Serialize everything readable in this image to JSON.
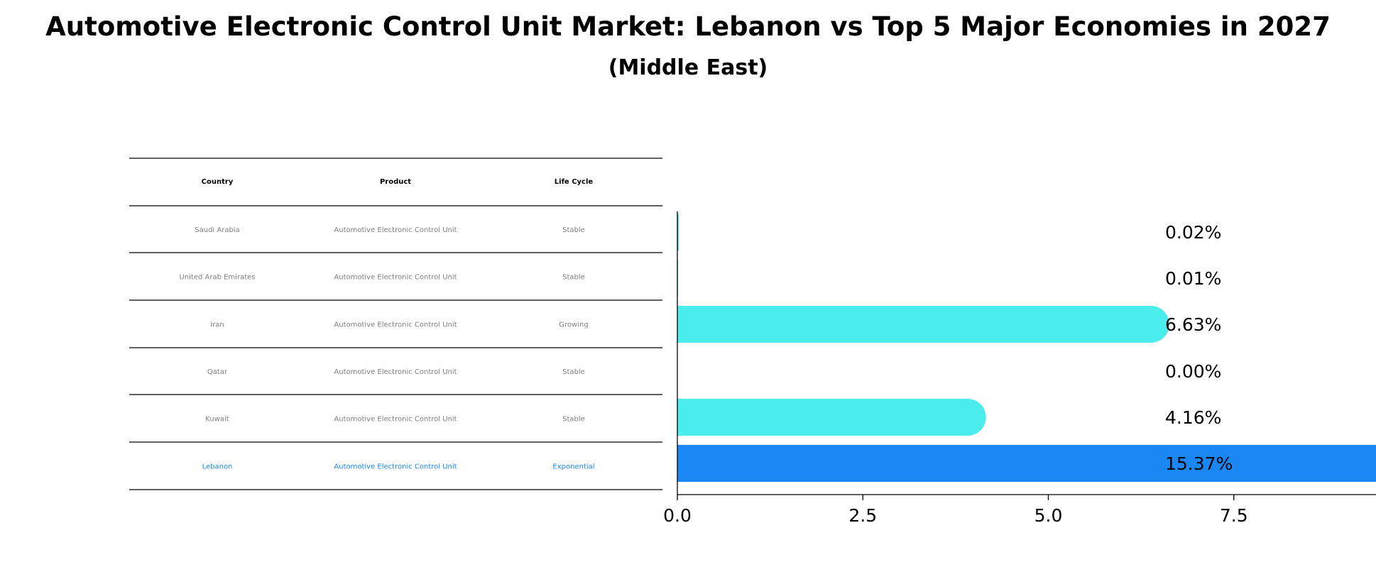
{
  "title": "Automotive Electronic Control Unit Market: Lebanon vs Top 5 Major Economies in 2027",
  "subtitle": "(Middle East)",
  "table": {
    "headers": [
      "Country",
      "Product",
      "Life Cycle"
    ],
    "rows": [
      {
        "country": "Saudi Arabia",
        "product": "Automotive Electronic Control Unit",
        "life_cycle": "Stable",
        "highlight": false
      },
      {
        "country": "United Arab Emirates",
        "product": "Automotive Electronic Control Unit",
        "life_cycle": "Stable",
        "highlight": false
      },
      {
        "country": "Iran",
        "product": "Automotive Electronic Control Unit",
        "life_cycle": "Growing",
        "highlight": false
      },
      {
        "country": "Qatar",
        "product": "Automotive Electronic Control Unit",
        "life_cycle": "Stable",
        "highlight": false
      },
      {
        "country": "Kuwait",
        "product": "Automotive Electronic Control Unit",
        "life_cycle": "Stable",
        "highlight": false
      },
      {
        "country": "Lebanon",
        "product": "Automotive Electronic Control Unit",
        "life_cycle": "Exponential",
        "highlight": true
      }
    ]
  },
  "chart_data": {
    "type": "bar",
    "orientation": "horizontal",
    "categories": [
      "Saudi Arabia",
      "United Arab Emirates",
      "Iran",
      "Qatar",
      "Kuwait",
      "Lebanon"
    ],
    "values": [
      0.02,
      0.01,
      6.63,
      0.0,
      4.16,
      15.37
    ],
    "value_labels": [
      "0.02%",
      "0.01%",
      "6.63%",
      "0.00%",
      "4.16%",
      "15.37%"
    ],
    "xlim": [
      0,
      16.2
    ],
    "xticks": [
      "0.0",
      "2.5",
      "5.0",
      "7.5",
      "10.0",
      "12.5",
      "15.0"
    ],
    "xtick_values": [
      0,
      2.5,
      5,
      7.5,
      10,
      12.5,
      15
    ],
    "grid": false,
    "colors": {
      "default_bar": "#4aecec",
      "highlight_bar": "#1a87f5",
      "highlight_text": "#1a87f5",
      "muted_text": "#808080"
    }
  }
}
